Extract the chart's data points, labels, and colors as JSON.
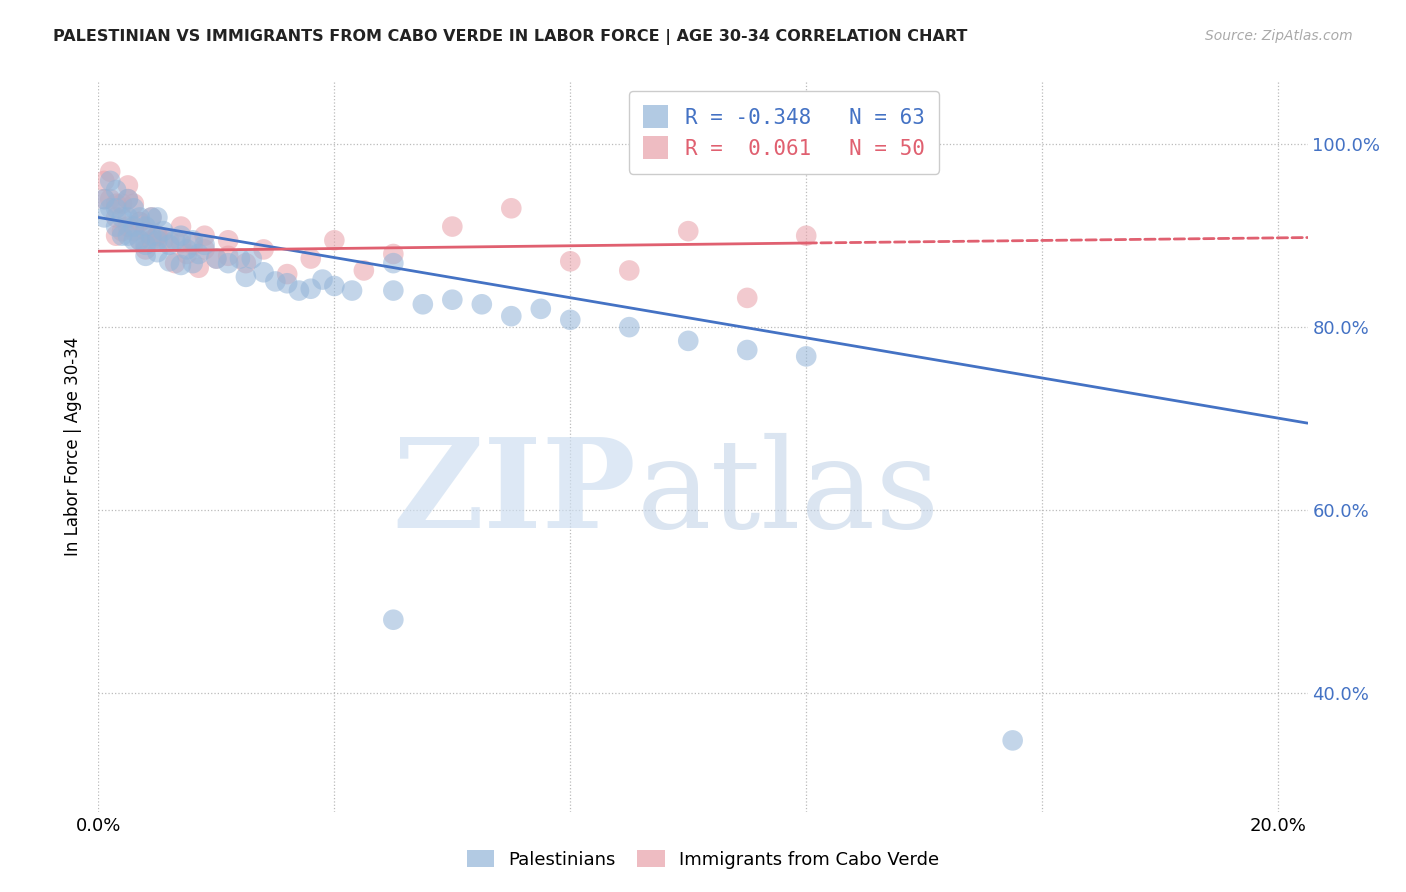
{
  "title": "PALESTINIAN VS IMMIGRANTS FROM CABO VERDE IN LABOR FORCE | AGE 30-34 CORRELATION CHART",
  "source": "Source: ZipAtlas.com",
  "ylabel": "In Labor Force | Age 30-34",
  "xlim": [
    0.0,
    0.205
  ],
  "ylim": [
    0.27,
    1.07
  ],
  "yticks": [
    0.4,
    0.6,
    0.8,
    1.0
  ],
  "ytick_labels": [
    "40.0%",
    "60.0%",
    "80.0%",
    "100.0%"
  ],
  "xtick_positions": [
    0.0,
    0.04,
    0.08,
    0.12,
    0.16,
    0.2
  ],
  "xtick_labels": [
    "0.0%",
    "",
    "",
    "",
    "",
    "20.0%"
  ],
  "blue_color": "#92b4d8",
  "pink_color": "#e8a0a8",
  "blue_line_color": "#4472c4",
  "pink_line_color": "#e06070",
  "blue_R": -0.348,
  "blue_N": 63,
  "pink_R": 0.061,
  "pink_N": 50,
  "blue_line_x0": 0.0,
  "blue_line_y0": 0.92,
  "blue_line_x1": 0.205,
  "blue_line_y1": 0.695,
  "pink_line_solid_x0": 0.0,
  "pink_line_solid_y0": 0.883,
  "pink_line_solid_x1": 0.12,
  "pink_line_solid_y1": 0.892,
  "pink_line_dash_x0": 0.12,
  "pink_line_dash_y0": 0.892,
  "pink_line_dash_x1": 0.205,
  "pink_line_dash_y1": 0.898,
  "blue_x": [
    0.001,
    0.001,
    0.002,
    0.002,
    0.003,
    0.003,
    0.003,
    0.004,
    0.004,
    0.005,
    0.005,
    0.005,
    0.006,
    0.006,
    0.007,
    0.007,
    0.008,
    0.008,
    0.009,
    0.009,
    0.01,
    0.01,
    0.011,
    0.012,
    0.013,
    0.014,
    0.015,
    0.016,
    0.017,
    0.018,
    0.02,
    0.022,
    0.024,
    0.025,
    0.026,
    0.028,
    0.03,
    0.032,
    0.034,
    0.036,
    0.038,
    0.04,
    0.043,
    0.05,
    0.055,
    0.06,
    0.065,
    0.07,
    0.075,
    0.08,
    0.09,
    0.1,
    0.11,
    0.12,
    0.006,
    0.008,
    0.01,
    0.012,
    0.014,
    0.016,
    0.05,
    0.155,
    0.05
  ],
  "blue_y": [
    0.94,
    0.92,
    0.96,
    0.93,
    0.93,
    0.95,
    0.91,
    0.92,
    0.9,
    0.94,
    0.92,
    0.9,
    0.93,
    0.91,
    0.92,
    0.895,
    0.91,
    0.89,
    0.92,
    0.9,
    0.92,
    0.895,
    0.905,
    0.89,
    0.895,
    0.9,
    0.885,
    0.895,
    0.88,
    0.89,
    0.875,
    0.87,
    0.875,
    0.855,
    0.875,
    0.86,
    0.85,
    0.848,
    0.84,
    0.842,
    0.852,
    0.845,
    0.84,
    0.84,
    0.825,
    0.83,
    0.825,
    0.812,
    0.82,
    0.808,
    0.8,
    0.785,
    0.775,
    0.768,
    0.895,
    0.878,
    0.882,
    0.872,
    0.868,
    0.87,
    0.48,
    0.348,
    0.87
  ],
  "pink_x": [
    0.001,
    0.001,
    0.002,
    0.002,
    0.003,
    0.003,
    0.004,
    0.004,
    0.005,
    0.005,
    0.006,
    0.006,
    0.007,
    0.007,
    0.008,
    0.008,
    0.009,
    0.009,
    0.01,
    0.011,
    0.012,
    0.013,
    0.014,
    0.015,
    0.016,
    0.017,
    0.018,
    0.02,
    0.022,
    0.025,
    0.028,
    0.032,
    0.036,
    0.04,
    0.045,
    0.05,
    0.06,
    0.07,
    0.08,
    0.09,
    0.1,
    0.11,
    0.12,
    0.003,
    0.005,
    0.007,
    0.01,
    0.014,
    0.018,
    0.022
  ],
  "pink_y": [
    0.94,
    0.96,
    0.97,
    0.94,
    0.92,
    0.9,
    0.935,
    0.905,
    0.94,
    0.91,
    0.935,
    0.905,
    0.895,
    0.915,
    0.905,
    0.885,
    0.92,
    0.895,
    0.9,
    0.895,
    0.895,
    0.87,
    0.91,
    0.88,
    0.89,
    0.865,
    0.9,
    0.875,
    0.895,
    0.87,
    0.885,
    0.858,
    0.875,
    0.895,
    0.862,
    0.88,
    0.91,
    0.93,
    0.872,
    0.862,
    0.905,
    0.832,
    0.9,
    0.935,
    0.955,
    0.915,
    0.9,
    0.892,
    0.885,
    0.878
  ]
}
